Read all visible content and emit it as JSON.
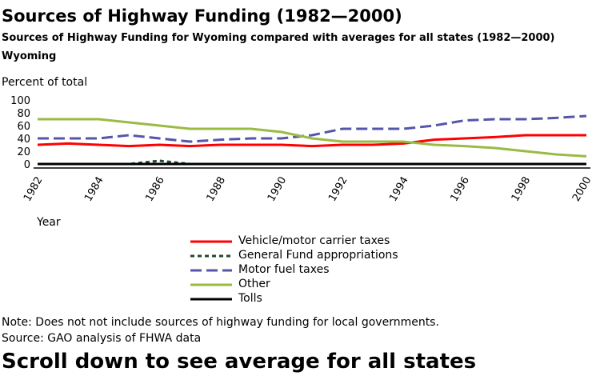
{
  "title": "Sources of Highway Funding (1982—2000)",
  "subtitle": "Sources of Highway Funding for Wyoming compared with averages for all states (1982—2000)",
  "state": "Wyoming",
  "note": "Note: Does not not include sources of highway funding for local governments.",
  "source": "Source: GAO analysis of FHWA data",
  "scroll_hint": "Scroll down to see average for all states",
  "chart_data": {
    "type": "line",
    "ylabel": "Percent of total",
    "xlabel": "Year",
    "ylim": [
      0,
      100
    ],
    "yticks": [
      "0",
      "20",
      "40",
      "60",
      "80",
      "100"
    ],
    "x": [
      "1982",
      "1983",
      "1984",
      "1985",
      "1986",
      "1987",
      "1988",
      "1989",
      "1990",
      "1991",
      "1992",
      "1993",
      "1994",
      "1995",
      "1996",
      "1997",
      "1998",
      "1999",
      "2000"
    ],
    "xticks": [
      "1982",
      "1984",
      "1986",
      "1988",
      "1990",
      "1992",
      "1994",
      "1996",
      "1998",
      "2000"
    ],
    "legend_position": "bottom",
    "series": [
      {
        "name": "Vehicle/motor carrier taxes",
        "color": "#ff0000",
        "dash": "solid",
        "values": [
          30,
          32,
          30,
          28,
          30,
          28,
          30,
          30,
          30,
          28,
          30,
          30,
          32,
          38,
          40,
          42,
          45,
          45,
          45
        ]
      },
      {
        "name": "General Fund appropriations",
        "color": "#224433",
        "dash": "short",
        "values": [
          0,
          0,
          0,
          0,
          5,
          0,
          0,
          0,
          0,
          0,
          0,
          0,
          0,
          0,
          0,
          0,
          0,
          0,
          0
        ]
      },
      {
        "name": "Motor fuel taxes",
        "color": "#5555aa",
        "dash": "long",
        "values": [
          40,
          40,
          40,
          45,
          40,
          35,
          38,
          40,
          40,
          45,
          55,
          55,
          55,
          60,
          68,
          70,
          70,
          72,
          75
        ]
      },
      {
        "name": "Other",
        "color": "#99bb44",
        "dash": "solid",
        "values": [
          70,
          70,
          70,
          65,
          60,
          55,
          55,
          55,
          50,
          40,
          35,
          35,
          35,
          30,
          28,
          25,
          20,
          15,
          12
        ]
      },
      {
        "name": "Tolls",
        "color": "#000000",
        "dash": "solid",
        "values": [
          0,
          0,
          0,
          0,
          0,
          0,
          0,
          0,
          0,
          0,
          0,
          0,
          0,
          0,
          0,
          0,
          0,
          0,
          0
        ]
      }
    ]
  }
}
